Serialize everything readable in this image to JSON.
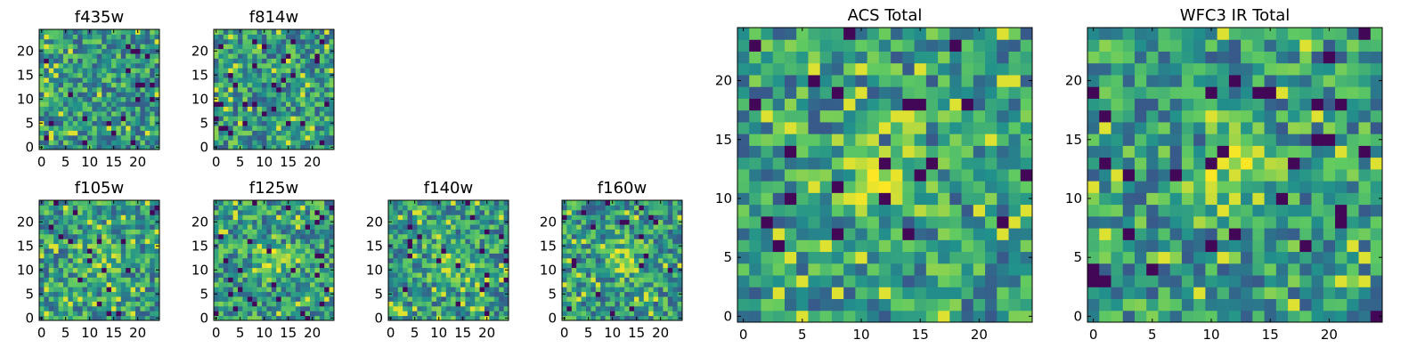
{
  "figure": {
    "colormap": [
      "#440154",
      "#3b528b",
      "#21918c",
      "#5ec962",
      "#fde725"
    ],
    "background": "#ffffff"
  },
  "chart_data": [
    {
      "type": "heatmap",
      "title": "f435w",
      "grid_size": 25,
      "xlim": [
        0,
        24
      ],
      "ylim": [
        0,
        24
      ],
      "xticks": [
        0,
        5,
        10,
        15,
        20
      ],
      "yticks": [
        0,
        5,
        10,
        15,
        20
      ],
      "seed": 435,
      "style": "noise"
    },
    {
      "type": "heatmap",
      "title": "f814w",
      "grid_size": 25,
      "xlim": [
        0,
        24
      ],
      "ylim": [
        0,
        24
      ],
      "xticks": [
        0,
        5,
        10,
        15,
        20
      ],
      "yticks": [
        0,
        5,
        10,
        15,
        20
      ],
      "seed": 814,
      "style": "noise"
    },
    {
      "type": "heatmap",
      "title": "f105w",
      "grid_size": 25,
      "xlim": [
        0,
        24
      ],
      "ylim": [
        0,
        24
      ],
      "xticks": [
        0,
        5,
        10,
        15,
        20
      ],
      "yticks": [
        0,
        5,
        10,
        15,
        20
      ],
      "seed": 105,
      "style": "blob"
    },
    {
      "type": "heatmap",
      "title": "f125w",
      "grid_size": 25,
      "xlim": [
        0,
        24
      ],
      "ylim": [
        0,
        24
      ],
      "xticks": [
        0,
        5,
        10,
        15,
        20
      ],
      "yticks": [
        0,
        5,
        10,
        15,
        20
      ],
      "seed": 125,
      "style": "blob"
    },
    {
      "type": "heatmap",
      "title": "f140w",
      "grid_size": 25,
      "xlim": [
        0,
        24
      ],
      "ylim": [
        0,
        24
      ],
      "xticks": [
        0,
        5,
        10,
        15,
        20
      ],
      "yticks": [
        0,
        5,
        10,
        15,
        20
      ],
      "seed": 140,
      "style": "blob"
    },
    {
      "type": "heatmap",
      "title": "f160w",
      "grid_size": 25,
      "xlim": [
        0,
        24
      ],
      "ylim": [
        0,
        24
      ],
      "xticks": [
        0,
        5,
        10,
        15,
        20
      ],
      "yticks": [
        0,
        5,
        10,
        15,
        20
      ],
      "seed": 160,
      "style": "blob"
    },
    {
      "type": "heatmap",
      "title": "ACS Total",
      "grid_size": 25,
      "xlim": [
        0,
        24
      ],
      "ylim": [
        0,
        24
      ],
      "xticks": [
        0,
        5,
        10,
        15,
        20
      ],
      "yticks": [
        0,
        5,
        10,
        15,
        20
      ],
      "seed": 1001,
      "style": "total"
    },
    {
      "type": "heatmap",
      "title": "WFC3 IR Total",
      "grid_size": 25,
      "xlim": [
        0,
        24
      ],
      "ylim": [
        0,
        24
      ],
      "xticks": [
        0,
        5,
        10,
        15,
        20
      ],
      "yticks": [
        0,
        5,
        10,
        15,
        20
      ],
      "seed": 2002,
      "style": "total"
    }
  ]
}
